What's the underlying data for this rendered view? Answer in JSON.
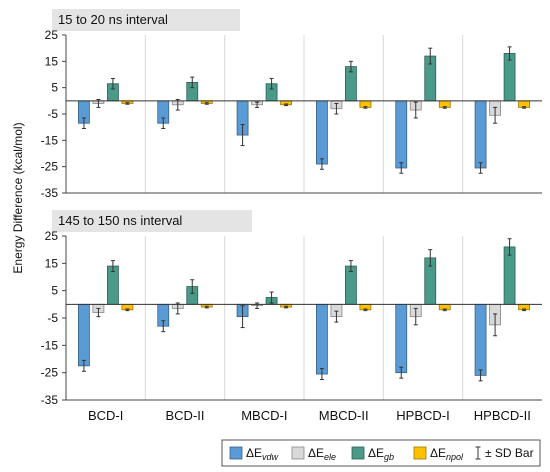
{
  "chart_data": {
    "type": "bar",
    "ylabel": "Energy Difference (kcal/mol)",
    "ylim": [
      -35,
      25
    ],
    "yticks": [
      25,
      15,
      5,
      -5,
      -15,
      -25,
      -35
    ],
    "categories": [
      "BCD-I",
      "BCD-II",
      "MBCD-I",
      "MBCD-II",
      "HPBCD-I",
      "HPBCD-II"
    ],
    "legend": {
      "placement": "bottom-right",
      "sd_label": "± SD Bar"
    },
    "series": [
      {
        "key": "vdw",
        "symbol": "ΔE",
        "sub": "vdw",
        "color": "#5b9bd5"
      },
      {
        "key": "ele",
        "symbol": "ΔE",
        "sub": "ele",
        "color": "#d9d9d9"
      },
      {
        "key": "gb",
        "symbol": "ΔE",
        "sub": "gb",
        "color": "#4a9a8a"
      },
      {
        "key": "npol",
        "symbol": "ΔE",
        "sub": "npol",
        "color": "#ffc000"
      }
    ],
    "panels": [
      {
        "title": "15 to 20 ns interval",
        "values": {
          "vdw": [
            -8.5,
            -8.5,
            -13,
            -24,
            -25.5,
            -25.5
          ],
          "ele": [
            -1,
            -1.5,
            -1.5,
            -3,
            -3.5,
            -5.5
          ],
          "gb": [
            6.5,
            7,
            6.5,
            13,
            17,
            18
          ],
          "npol": [
            -1,
            -1,
            -1.5,
            -2.5,
            -2.5,
            -2.5
          ]
        },
        "errors": {
          "vdw": [
            2,
            2,
            4,
            2,
            2,
            2
          ],
          "ele": [
            1.5,
            2,
            1,
            2,
            3,
            3
          ],
          "gb": [
            2,
            2,
            2,
            2,
            3,
            2.5
          ],
          "npol": [
            0.3,
            0.3,
            0.3,
            0.3,
            0.3,
            0.3
          ]
        }
      },
      {
        "title": "145 to 150 ns interval",
        "values": {
          "vdw": [
            -22.5,
            -8,
            -4.5,
            -25.5,
            -25,
            -26
          ],
          "ele": [
            -3,
            -1.5,
            -0.5,
            -4.5,
            -4.5,
            -7.5
          ],
          "gb": [
            14,
            6.5,
            2.5,
            14,
            17,
            21
          ],
          "npol": [
            -2,
            -1,
            -1,
            -2,
            -2,
            -2
          ]
        },
        "errors": {
          "vdw": [
            2,
            2,
            4,
            2,
            2,
            2
          ],
          "ele": [
            1.5,
            2,
            1,
            2,
            3,
            4
          ],
          "gb": [
            2,
            2.5,
            2,
            2,
            3,
            3
          ],
          "npol": [
            0.3,
            0.3,
            0.3,
            0.3,
            0.3,
            0.3
          ]
        }
      }
    ]
  }
}
